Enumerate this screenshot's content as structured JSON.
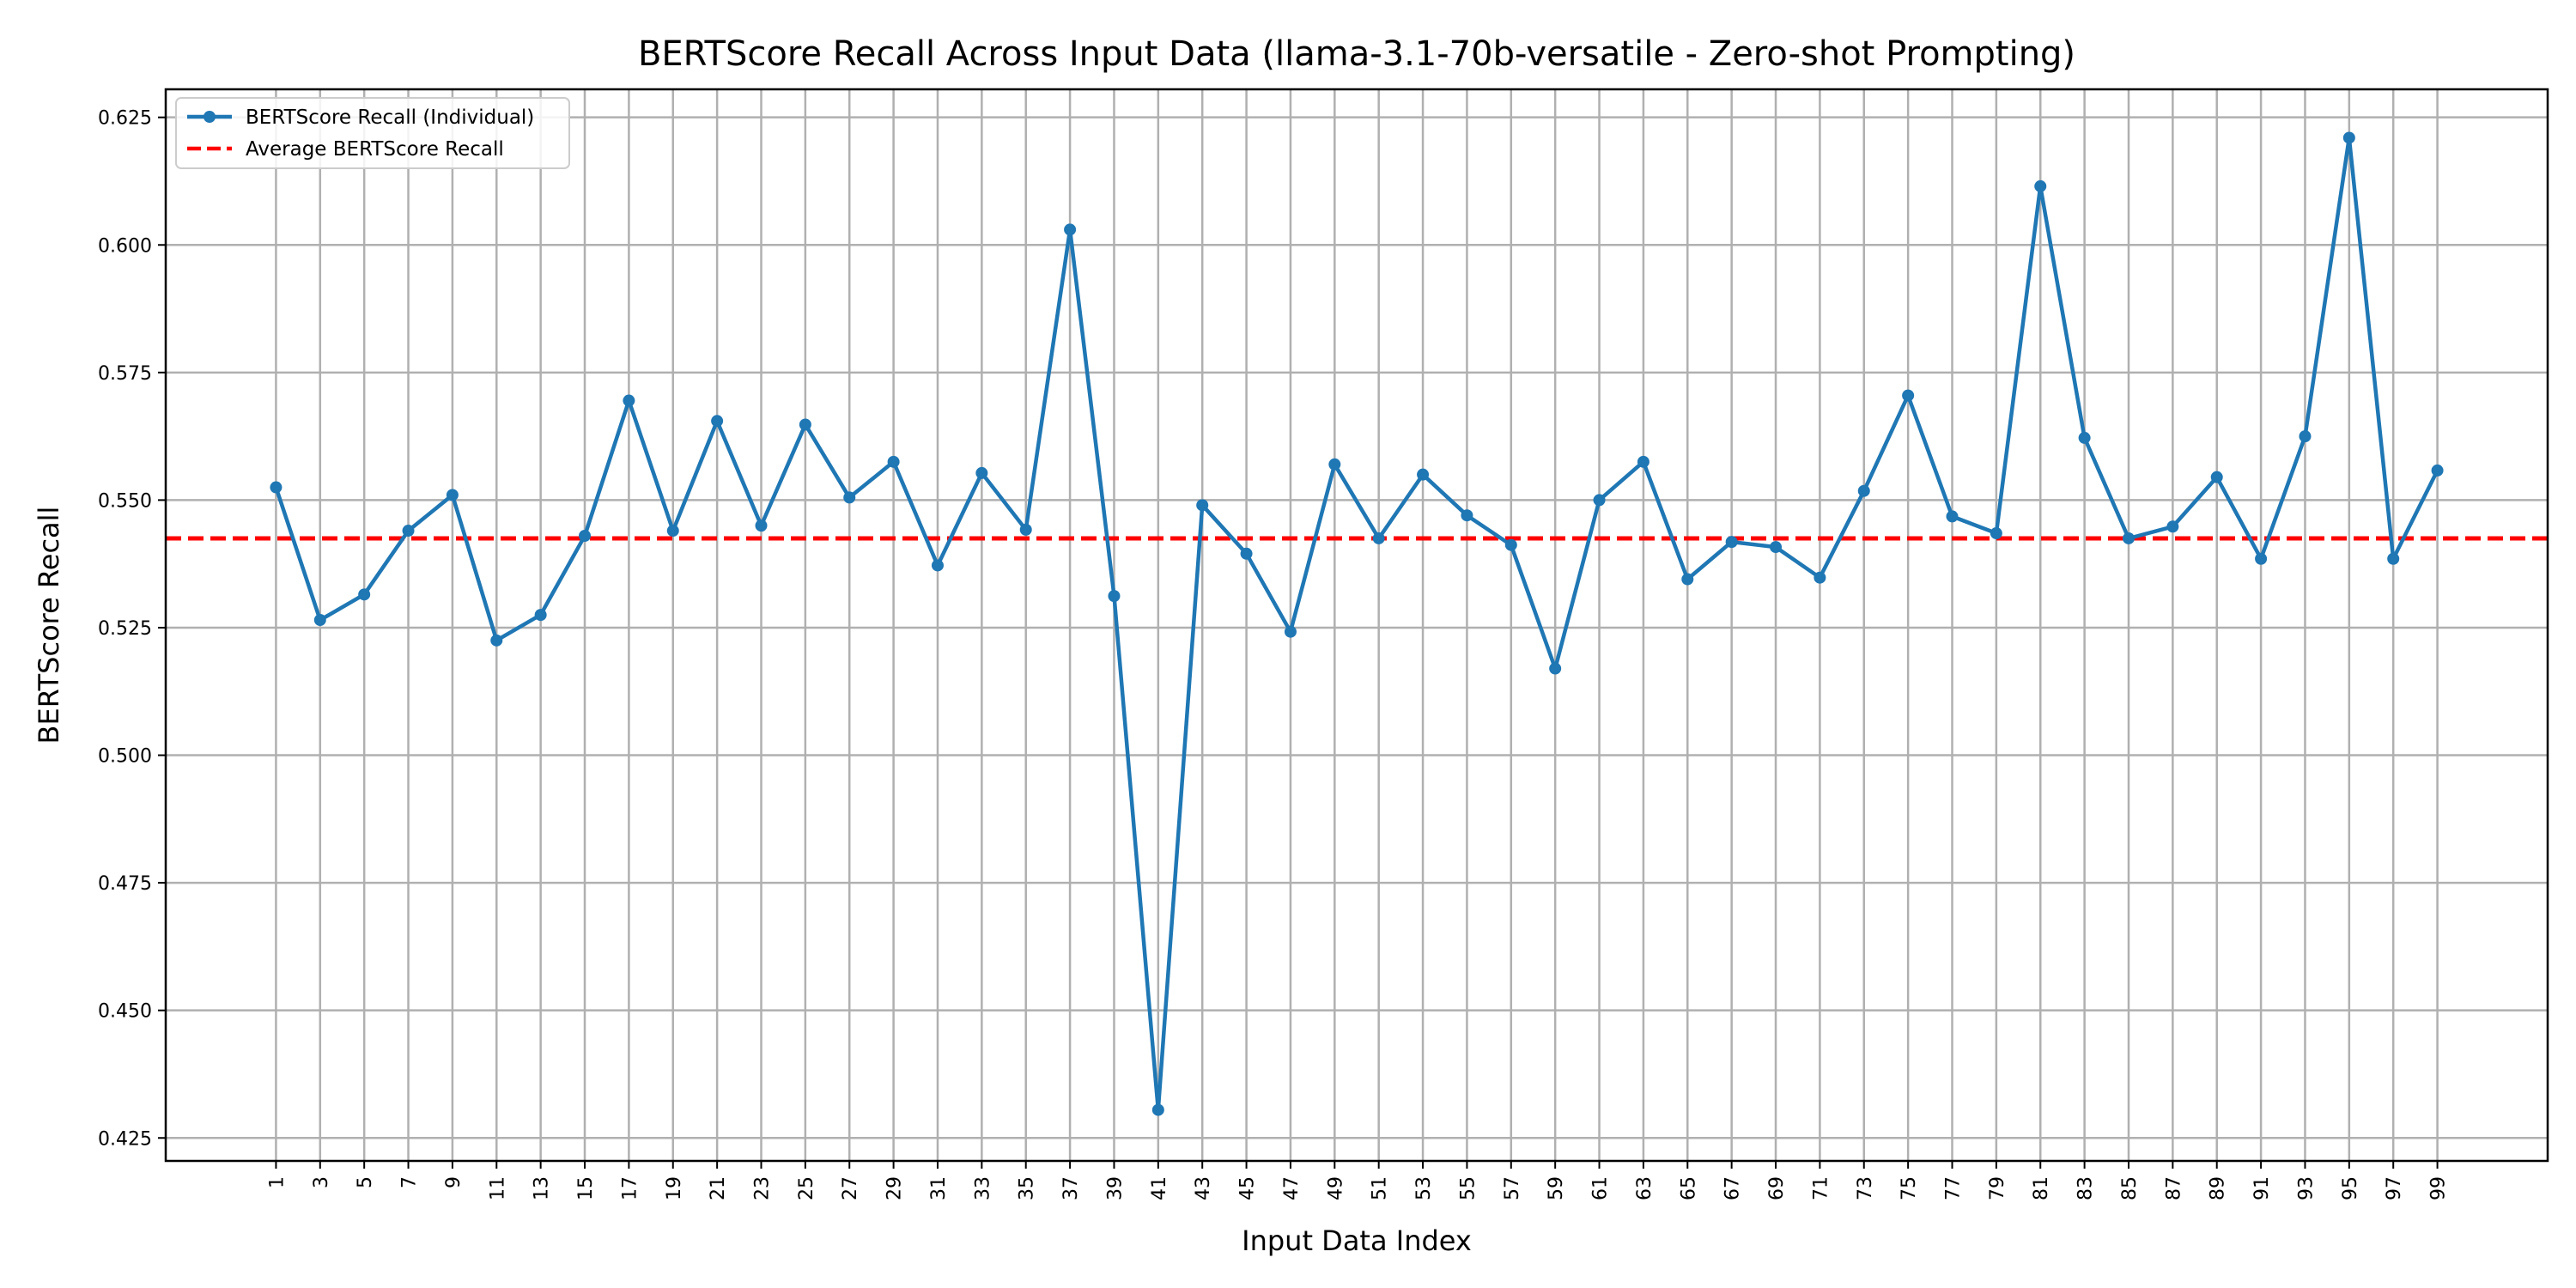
{
  "chart_data": {
    "type": "line",
    "title": "BERTScore Recall Across Input Data (llama-3.1-70b-versatile - Zero-shot Prompting)",
    "xlabel": "Input Data Index",
    "ylabel": "BERTScore Recall",
    "x": [
      1,
      3,
      5,
      7,
      9,
      11,
      13,
      15,
      17,
      19,
      21,
      23,
      25,
      27,
      29,
      31,
      33,
      35,
      37,
      39,
      41,
      43,
      45,
      47,
      49,
      51,
      53,
      55,
      57,
      59,
      61,
      63,
      65,
      67,
      69,
      71,
      73,
      75,
      77,
      79,
      81,
      83,
      85,
      87,
      89,
      91,
      93,
      95,
      97,
      99
    ],
    "xticks": [
      "1",
      "3",
      "5",
      "7",
      "9",
      "11",
      "13",
      "15",
      "17",
      "19",
      "21",
      "23",
      "25",
      "27",
      "29",
      "31",
      "33",
      "35",
      "37",
      "39",
      "41",
      "43",
      "45",
      "47",
      "49",
      "51",
      "53",
      "55",
      "57",
      "59",
      "61",
      "63",
      "65",
      "67",
      "69",
      "71",
      "73",
      "75",
      "77",
      "79",
      "81",
      "83",
      "85",
      "87",
      "89",
      "91",
      "93",
      "95",
      "97",
      "99"
    ],
    "yticks": [
      "0.425",
      "0.450",
      "0.475",
      "0.500",
      "0.525",
      "0.550",
      "0.575",
      "0.600",
      "0.625"
    ],
    "ylim": [
      0.4205,
      0.6305
    ],
    "xlim": [
      -4,
      104
    ],
    "grid": true,
    "legend_position": "top-left",
    "series": [
      {
        "name": "BERTScore Recall (Individual)",
        "color": "#1f77b4",
        "style": "solid-with-markers",
        "values": [
          0.5525,
          0.5265,
          0.5315,
          0.544,
          0.551,
          0.5225,
          0.5275,
          0.543,
          0.5695,
          0.544,
          0.5655,
          0.545,
          0.5648,
          0.5505,
          0.5575,
          0.5372,
          0.5553,
          0.5442,
          0.603,
          0.5312,
          0.4305,
          0.549,
          0.5395,
          0.5242,
          0.557,
          0.5425,
          0.555,
          0.547,
          0.5412,
          0.517,
          0.55,
          0.5575,
          0.5345,
          0.5418,
          0.5408,
          0.5348,
          0.5518,
          0.5705,
          0.5468,
          0.5435,
          0.6115,
          0.5622,
          0.5425,
          0.5448,
          0.5545,
          0.5385,
          0.5625,
          0.621,
          0.5385,
          0.5558
        ]
      },
      {
        "name": "Average BERTScore Recall",
        "color": "#ff0000",
        "style": "dashed",
        "value": 0.5425
      }
    ]
  }
}
